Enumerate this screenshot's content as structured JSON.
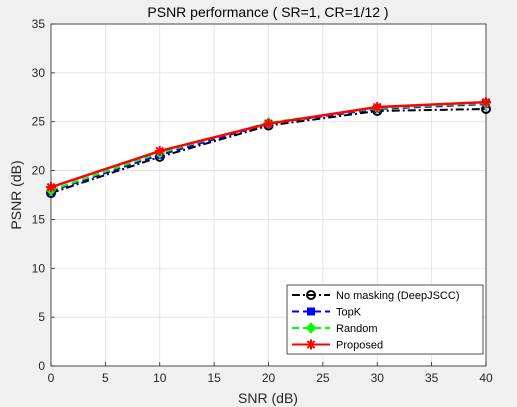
{
  "chart_data": {
    "type": "line",
    "title": "PSNR performance ( SR=1, CR=1/12 )",
    "xlabel": "SNR (dB)",
    "ylabel": "PSNR (dB)",
    "xlim": [
      0,
      40
    ],
    "ylim": [
      0,
      35
    ],
    "xticks": [
      0,
      5,
      10,
      15,
      20,
      25,
      30,
      35,
      40
    ],
    "yticks": [
      0,
      5,
      10,
      15,
      20,
      25,
      30,
      35
    ],
    "grid": true,
    "legend_position": "bottom-right",
    "x": [
      0,
      10,
      20,
      30,
      40
    ],
    "series": [
      {
        "name": "No masking (DeepJSCC)",
        "values": [
          17.7,
          21.4,
          24.6,
          26.1,
          26.3
        ],
        "color": "#000000",
        "line_style": "dash-dot",
        "marker": "circle"
      },
      {
        "name": "TopK",
        "values": [
          17.9,
          21.6,
          24.8,
          26.3,
          26.8
        ],
        "color": "#0000ff",
        "line_style": "dashed",
        "marker": "square"
      },
      {
        "name": "Random",
        "values": [
          18.0,
          21.8,
          24.9,
          26.4,
          26.9
        ],
        "color": "#00ff00",
        "line_style": "dashed",
        "marker": "diamond"
      },
      {
        "name": "Proposed",
        "values": [
          18.3,
          22.0,
          24.8,
          26.5,
          27.0
        ],
        "color": "#ff0000",
        "line_style": "solid",
        "marker": "star"
      }
    ]
  }
}
